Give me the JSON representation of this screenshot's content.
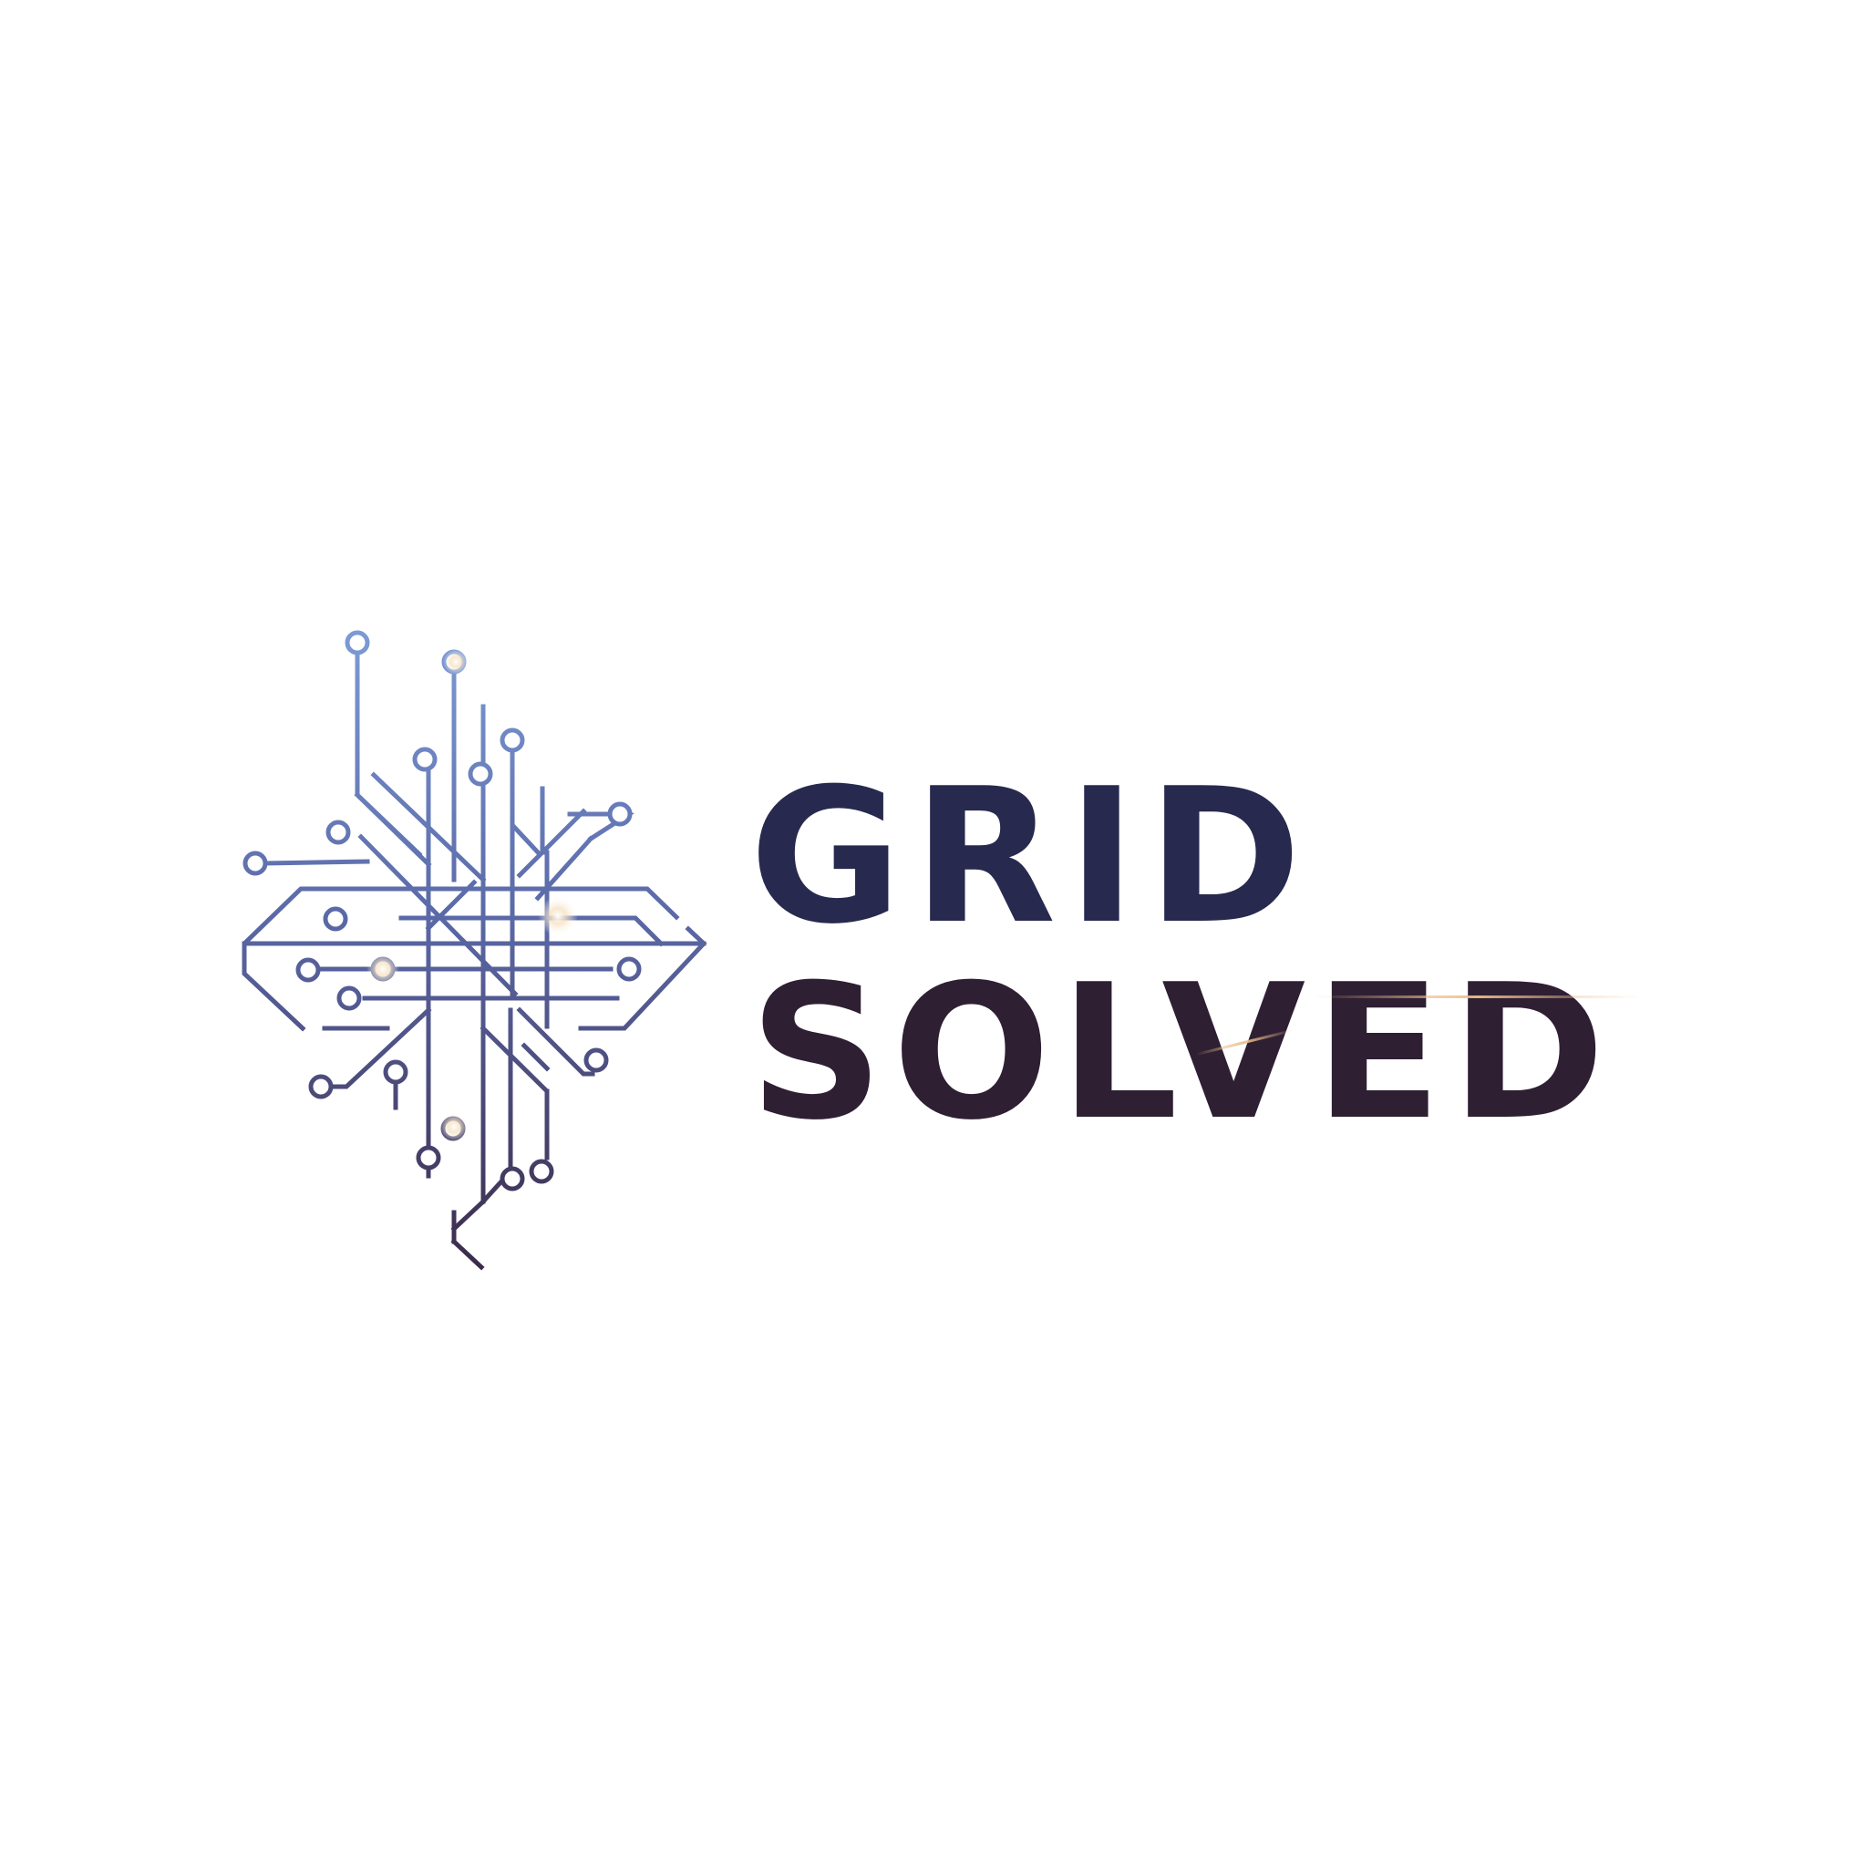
{
  "brand": {
    "line1": "GRID",
    "line2": "SOLVED"
  },
  "icon": "circuit-grid-icon",
  "colors": {
    "circuit_top": "#7c9bd6",
    "circuit_bottom": "#3b2a48",
    "wordmark_top": "#27294f",
    "wordmark_bottom": "#2e1f33",
    "flare": "#ecbe8c",
    "background": "#ffffff"
  }
}
